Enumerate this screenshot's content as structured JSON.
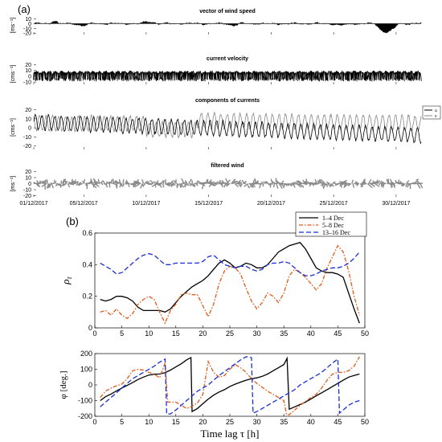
{
  "panel_labels": {
    "a": "(a)",
    "b": "(b)"
  },
  "chart_data": [
    {
      "type": "line",
      "title": "vector of wind speed",
      "ylabel": "[ms⁻¹]",
      "yticks": [
        -20,
        -10,
        0,
        10
      ],
      "ylim": [
        -23,
        16
      ],
      "xlim": [
        0,
        31
      ]
    },
    {
      "type": "line",
      "title": "current velocity",
      "ylabel": "[cms⁻¹]",
      "yticks": [
        -10,
        0,
        10,
        20
      ],
      "ylim": [
        -14,
        22
      ],
      "xlim": [
        0,
        31
      ]
    },
    {
      "type": "line",
      "title": "components of currents",
      "ylabel": "[cms⁻¹]",
      "yticks": [
        -20,
        -10,
        0,
        10,
        20
      ],
      "ylim": [
        -24,
        25
      ],
      "xlim": [
        0,
        31
      ],
      "legend": "top-right",
      "series": [
        {
          "name": "u",
          "color": "#000000"
        },
        {
          "name": "v",
          "color": "#888888"
        }
      ]
    },
    {
      "type": "line",
      "title": "filtered wind",
      "ylabel": "[ms⁻¹]",
      "yticks": [
        -20,
        -10,
        0,
        10,
        20
      ],
      "ylim": [
        -22,
        22
      ],
      "xlim": [
        0,
        31
      ],
      "x_tick_days": [
        0,
        4,
        9,
        14,
        19,
        24,
        29
      ],
      "xtick_labels": [
        "01/12/2017",
        "05/12/2017",
        "10/12/2017",
        "15/12/2017",
        "20/12/2017",
        "25/12/2017",
        "30/12/2017"
      ]
    },
    {
      "type": "line",
      "ylabel": "ρτ",
      "xlim": [
        0,
        50
      ],
      "ylim": [
        0,
        0.6
      ],
      "xticks": [
        0,
        5,
        10,
        15,
        20,
        25,
        30,
        35,
        40,
        45,
        50
      ],
      "yticks": [
        0,
        0.2,
        0.4,
        0.6
      ],
      "ytick_labels": [
        "0",
        "0.2",
        "0.4",
        "0.6"
      ],
      "legend": "top-right",
      "series": [
        {
          "name": "1–4 Dec",
          "color": "#000000",
          "style": "solid",
          "x": [
            1,
            2,
            3,
            4,
            5,
            6,
            7,
            8,
            9,
            10,
            11,
            12,
            13,
            14,
            15,
            16,
            17,
            18,
            19,
            20,
            21,
            22,
            23,
            24,
            25,
            26,
            27,
            28,
            29,
            30,
            31,
            32,
            33,
            34,
            35,
            36,
            37,
            38,
            39,
            40,
            41,
            42,
            43,
            44,
            45,
            46,
            47,
            48,
            49
          ],
          "y": [
            0.18,
            0.17,
            0.18,
            0.2,
            0.2,
            0.19,
            0.17,
            0.13,
            0.11,
            0.11,
            0.11,
            0.11,
            0.1,
            0.12,
            0.16,
            0.2,
            0.23,
            0.26,
            0.28,
            0.3,
            0.33,
            0.37,
            0.41,
            0.43,
            0.41,
            0.38,
            0.39,
            0.41,
            0.4,
            0.38,
            0.38,
            0.4,
            0.44,
            0.48,
            0.5,
            0.52,
            0.53,
            0.54,
            0.5,
            0.44,
            0.38,
            0.36,
            0.35,
            0.35,
            0.34,
            0.32,
            0.22,
            0.12,
            0.03
          ]
        },
        {
          "name": "5–8 Dec",
          "color": "#e05a1a",
          "style": "dashdot",
          "x": [
            1,
            2,
            3,
            4,
            5,
            6,
            7,
            8,
            9,
            10,
            11,
            12,
            13,
            14,
            15,
            16,
            17,
            18,
            19,
            20,
            21,
            22,
            23,
            24,
            25,
            26,
            27,
            28,
            29,
            30,
            31,
            32,
            33,
            34,
            35,
            36,
            37,
            38,
            39,
            40,
            41,
            42,
            43,
            44,
            45,
            46,
            47,
            48,
            49
          ],
          "y": [
            0.1,
            0.11,
            0.08,
            0.12,
            0.08,
            0.06,
            0.09,
            0.15,
            0.18,
            0.2,
            0.18,
            0.1,
            0.03,
            0.11,
            0.15,
            0.21,
            0.22,
            0.21,
            0.21,
            0.14,
            0.07,
            0.15,
            0.28,
            0.36,
            0.39,
            0.38,
            0.34,
            0.25,
            0.17,
            0.12,
            0.16,
            0.22,
            0.2,
            0.16,
            0.22,
            0.33,
            0.37,
            0.35,
            0.32,
            0.28,
            0.24,
            0.28,
            0.38,
            0.45,
            0.52,
            0.48,
            0.36,
            0.2,
            0.08
          ]
        },
        {
          "name": "13–16 Dec",
          "color": "#1a2fd6",
          "style": "dashed",
          "x": [
            1,
            2,
            3,
            4,
            5,
            6,
            7,
            8,
            9,
            10,
            11,
            12,
            13,
            14,
            15,
            16,
            17,
            18,
            19,
            20,
            21,
            22,
            23,
            24,
            25,
            26,
            27,
            28,
            29,
            30,
            31,
            32,
            33,
            34,
            35,
            36,
            37,
            38,
            39,
            40,
            41,
            42,
            43,
            44,
            45,
            46,
            47,
            48,
            49
          ],
          "y": [
            0.41,
            0.39,
            0.37,
            0.34,
            0.35,
            0.38,
            0.41,
            0.44,
            0.46,
            0.47,
            0.46,
            0.43,
            0.4,
            0.4,
            0.41,
            0.41,
            0.41,
            0.41,
            0.41,
            0.42,
            0.45,
            0.46,
            0.43,
            0.4,
            0.39,
            0.38,
            0.39,
            0.39,
            0.37,
            0.36,
            0.37,
            0.4,
            0.41,
            0.41,
            0.42,
            0.41,
            0.38,
            0.35,
            0.33,
            0.33,
            0.34,
            0.36,
            0.37,
            0.38,
            0.38,
            0.39,
            0.41,
            0.44,
            0.48
          ]
        }
      ]
    },
    {
      "type": "line",
      "ylabel": "φ [deg.]",
      "xlabel": "Time lag τ [h]",
      "xlim": [
        0,
        50
      ],
      "ylim": [
        -200,
        200
      ],
      "xticks": [
        0,
        5,
        10,
        15,
        20,
        25,
        30,
        35,
        40,
        45,
        50
      ],
      "yticks": [
        -200,
        -100,
        0,
        100,
        200
      ],
      "series": [
        {
          "name": "1–4 Dec",
          "color": "#000000",
          "style": "solid",
          "x": [
            1,
            2,
            3,
            4,
            5,
            6,
            7,
            8,
            9,
            10,
            11,
            12,
            13,
            14,
            15,
            16,
            17,
            17.8,
            18,
            19,
            20,
            21,
            22,
            23,
            24,
            25,
            26,
            27,
            28,
            29,
            30,
            31,
            32,
            33,
            34,
            35,
            35.3,
            35.6,
            36,
            37,
            38,
            39,
            40,
            41,
            42,
            43,
            44,
            45,
            46,
            47,
            48,
            49
          ],
          "y": [
            -100,
            -75,
            -58,
            -38,
            -20,
            -3,
            15,
            35,
            50,
            63,
            68,
            70,
            78,
            95,
            115,
            135,
            160,
            175,
            -170,
            -150,
            -120,
            -90,
            -65,
            -45,
            -30,
            -10,
            5,
            18,
            30,
            40,
            45,
            55,
            70,
            90,
            110,
            130,
            150,
            170,
            -155,
            -140,
            -125,
            -110,
            -90,
            -70,
            -50,
            -30,
            -10,
            10,
            30,
            50,
            60,
            70
          ]
        },
        {
          "name": "5–8 Dec",
          "color": "#e05a1a",
          "style": "dashdot",
          "x": [
            1,
            2,
            3,
            4,
            5,
            6,
            7,
            8,
            9,
            10,
            11,
            12,
            13,
            13.5,
            14,
            15,
            16,
            17,
            18,
            19,
            20,
            21,
            22,
            23,
            24,
            25,
            26,
            27,
            28,
            29,
            30,
            31,
            32,
            33,
            34,
            35,
            35.5,
            36,
            37,
            38,
            39,
            40,
            41,
            42,
            43,
            44,
            45,
            46,
            47,
            48,
            49
          ],
          "y": [
            -80,
            -40,
            -20,
            -5,
            5,
            40,
            90,
            100,
            95,
            80,
            70,
            45,
            140,
            -110,
            -110,
            -110,
            -130,
            -150,
            -135,
            -115,
            -60,
            150,
            80,
            50,
            60,
            100,
            130,
            110,
            80,
            40,
            10,
            -15,
            -40,
            -60,
            -80,
            -100,
            -190,
            -190,
            -160,
            -130,
            -105,
            -80,
            -60,
            -20,
            30,
            70,
            80,
            80,
            90,
            120,
            180
          ]
        },
        {
          "name": "13–16 Dec",
          "color": "#1a2fd6",
          "style": "dashed",
          "x": [
            1,
            2,
            3,
            4,
            5,
            6,
            7,
            8,
            9,
            10,
            11,
            12,
            13,
            13.3,
            14,
            15,
            16,
            17,
            18,
            19,
            20,
            21,
            22,
            23,
            24,
            25,
            26,
            27,
            28,
            29,
            29.3,
            30,
            31,
            32,
            33,
            34,
            35,
            36,
            37,
            38,
            39,
            40,
            41,
            42,
            43,
            44,
            45,
            45.3,
            46,
            47,
            48,
            49
          ],
          "y": [
            -140,
            -110,
            -80,
            -50,
            -20,
            10,
            40,
            60,
            80,
            100,
            120,
            145,
            165,
            -185,
            -185,
            -160,
            -130,
            -100,
            -70,
            -40,
            -20,
            0,
            30,
            60,
            85,
            110,
            135,
            160,
            180,
            175,
            -180,
            -170,
            -150,
            -130,
            -110,
            -90,
            -70,
            -50,
            -30,
            0,
            20,
            40,
            60,
            80,
            110,
            140,
            165,
            -180,
            -160,
            -130,
            -110,
            -100
          ]
        }
      ]
    }
  ]
}
